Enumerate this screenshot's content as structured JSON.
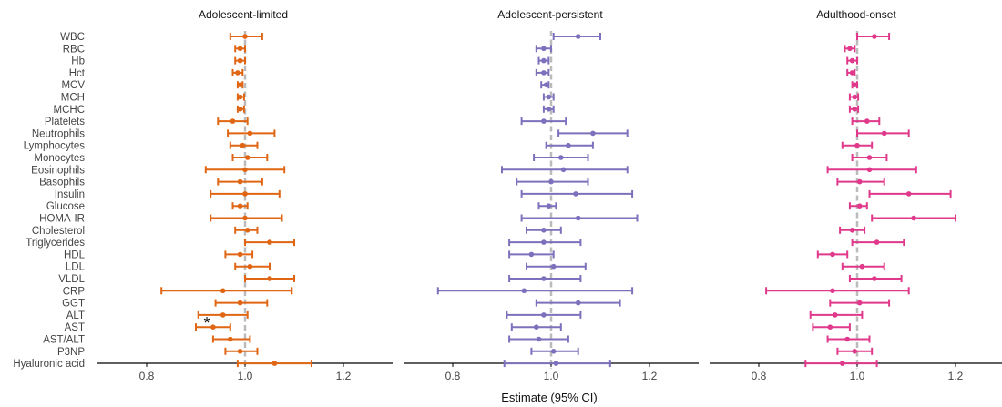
{
  "chart_data": {
    "type": "forest",
    "xlabel": "Estimate (95% CI)",
    "xlim": [
      0.7,
      1.3
    ],
    "xticks": [
      "0.8",
      "1.0",
      "1.2"
    ],
    "reference_line": 1.0,
    "variables": [
      "WBC",
      "RBC",
      "Hb",
      "Hct",
      "MCV",
      "MCH",
      "MCHC",
      "Platelets",
      "Neutrophils",
      "Lymphocytes",
      "Monocytes",
      "Eosinophils",
      "Basophils",
      "Insulin",
      "Glucose",
      "HOMA-IR",
      "Cholesterol",
      "Triglycerides",
      "HDL",
      "LDL",
      "VLDL",
      "CRP",
      "GGT",
      "ALT",
      "AST",
      "AST/ALT",
      "P3NP",
      "Hyaluronic acid"
    ],
    "panels": [
      {
        "title": "Adolescent-limited",
        "color": "#e06614",
        "estimates": [
          1.0,
          0.99,
          0.99,
          0.985,
          0.99,
          0.99,
          0.99,
          0.975,
          1.01,
          0.995,
          1.005,
          1.0,
          0.99,
          1.0,
          0.99,
          1.0,
          1.005,
          1.05,
          0.99,
          1.01,
          1.05,
          0.955,
          0.99,
          0.955,
          0.935,
          0.97,
          0.99,
          1.06
        ],
        "lower": [
          0.97,
          0.98,
          0.98,
          0.975,
          0.985,
          0.985,
          0.985,
          0.945,
          0.965,
          0.97,
          0.975,
          0.92,
          0.945,
          0.93,
          0.975,
          0.93,
          0.98,
          1.0,
          0.96,
          0.98,
          1.0,
          0.83,
          0.94,
          0.905,
          0.9,
          0.935,
          0.96,
          0.985
        ],
        "upper": [
          1.035,
          1.0,
          1.0,
          0.995,
          0.995,
          0.998,
          0.998,
          1.005,
          1.06,
          1.025,
          1.045,
          1.08,
          1.035,
          1.07,
          1.005,
          1.075,
          1.025,
          1.1,
          1.015,
          1.05,
          1.1,
          1.095,
          1.045,
          1.005,
          0.97,
          1.01,
          1.025,
          1.135
        ],
        "annotations": [
          {
            "variable": "AST",
            "text": "*"
          }
        ]
      },
      {
        "title": "Adolescent-persistent",
        "color": "#7d70bc",
        "estimates": [
          1.055,
          0.985,
          0.985,
          0.985,
          0.99,
          0.995,
          0.995,
          0.985,
          1.085,
          1.035,
          1.02,
          1.025,
          1.0,
          1.05,
          0.995,
          1.055,
          0.985,
          0.985,
          0.96,
          1.005,
          0.985,
          0.945,
          1.055,
          0.985,
          0.97,
          0.975,
          1.005,
          1.01
        ],
        "lower": [
          1.005,
          0.97,
          0.975,
          0.97,
          0.98,
          0.985,
          0.985,
          0.94,
          1.015,
          0.99,
          0.965,
          0.9,
          0.93,
          0.94,
          0.975,
          0.94,
          0.95,
          0.915,
          0.915,
          0.95,
          0.915,
          0.77,
          0.97,
          0.91,
          0.92,
          0.915,
          0.96,
          0.905
        ],
        "upper": [
          1.1,
          1.0,
          0.995,
          0.995,
          0.995,
          1.005,
          1.005,
          1.03,
          1.155,
          1.085,
          1.075,
          1.155,
          1.075,
          1.165,
          1.01,
          1.175,
          1.02,
          1.06,
          1.005,
          1.07,
          1.06,
          1.165,
          1.14,
          1.06,
          1.02,
          1.035,
          1.055,
          1.12
        ]
      },
      {
        "title": "Adulthood-onset",
        "color": "#e0388a",
        "estimates": [
          1.035,
          0.985,
          0.99,
          0.99,
          0.995,
          0.995,
          0.995,
          1.02,
          1.055,
          1.0,
          1.025,
          1.025,
          1.005,
          1.105,
          1.005,
          1.115,
          0.99,
          1.04,
          0.95,
          1.01,
          1.035,
          0.95,
          1.005,
          0.955,
          0.945,
          0.98,
          0.995,
          0.97
        ],
        "lower": [
          1.0,
          0.975,
          0.98,
          0.98,
          0.99,
          0.985,
          0.985,
          0.99,
          1.0,
          0.97,
          0.99,
          0.94,
          0.96,
          1.025,
          0.985,
          1.03,
          0.965,
          0.99,
          0.92,
          0.97,
          0.985,
          0.815,
          0.945,
          0.905,
          0.91,
          0.94,
          0.96,
          0.895
        ],
        "upper": [
          1.065,
          0.995,
          1.0,
          0.995,
          1.0,
          1.002,
          1.002,
          1.045,
          1.105,
          1.03,
          1.06,
          1.12,
          1.055,
          1.19,
          1.02,
          1.2,
          1.015,
          1.095,
          0.98,
          1.055,
          1.09,
          1.105,
          1.065,
          1.01,
          0.985,
          1.025,
          1.03,
          1.04
        ]
      }
    ]
  },
  "colors": {
    "reference_line": "#bbbbbb",
    "axis": "#000000",
    "text": "#444444"
  }
}
